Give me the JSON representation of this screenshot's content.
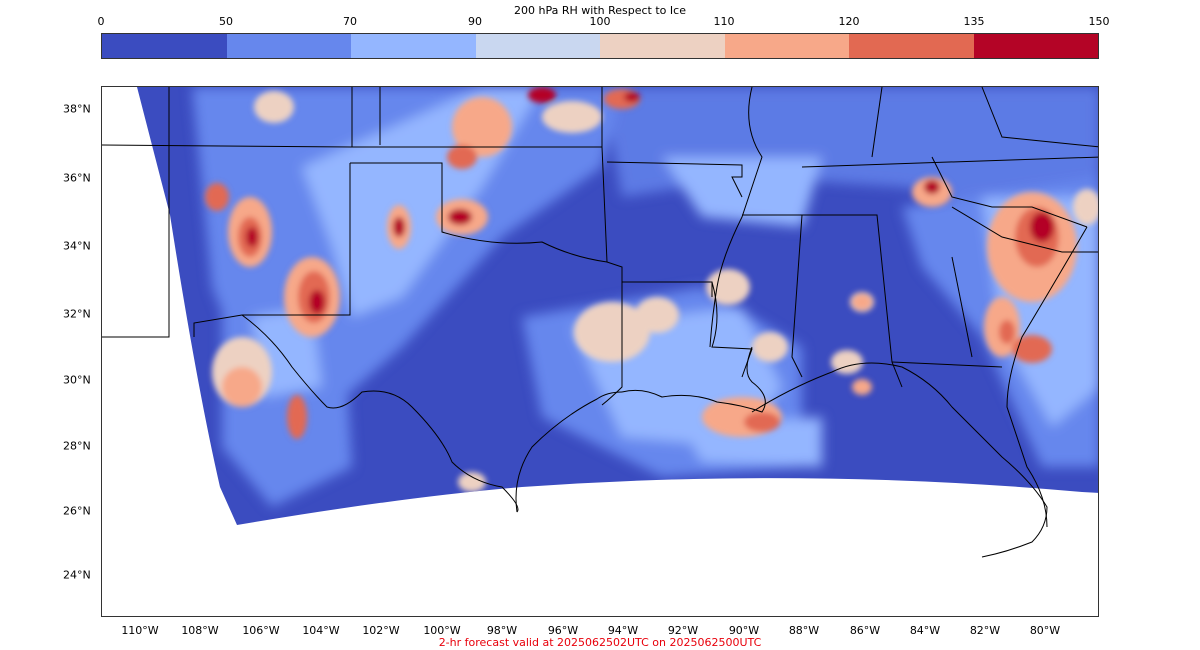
{
  "colorbar": {
    "title": "200 hPa RH with Respect to Ice",
    "ticks": [
      "0",
      "50",
      "70",
      "90",
      "100",
      "110",
      "120",
      "135",
      "150"
    ],
    "colors": [
      "#3b4cc0",
      "#6687ed",
      "#94b6ff",
      "#c9d7f0",
      "#edd1c2",
      "#f7a889",
      "#e26952",
      "#b40426"
    ]
  },
  "axes": {
    "lat_labels": [
      "38°N",
      "36°N",
      "34°N",
      "32°N",
      "30°N",
      "28°N",
      "26°N",
      "24°N"
    ],
    "lon_labels": [
      "110°W",
      "108°W",
      "106°W",
      "104°W",
      "102°W",
      "100°W",
      "98°W",
      "96°W",
      "94°W",
      "92°W",
      "90°W",
      "88°W",
      "86°W",
      "84°W",
      "82°W",
      "80°W"
    ]
  },
  "footer": "2-hr forecast valid at 2025062502UTC on 2025062500UTC"
}
